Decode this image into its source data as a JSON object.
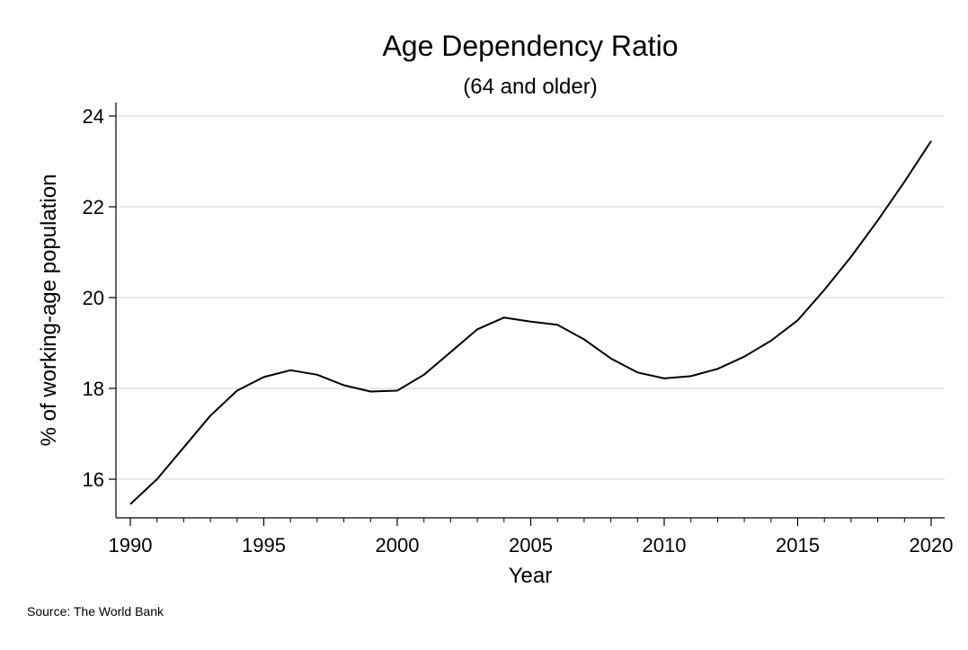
{
  "chart_data": {
    "type": "line",
    "title": "Age Dependency Ratio",
    "subtitle": "(64 and older)",
    "xlabel": "Year",
    "ylabel": "% of working-age population",
    "xlim": [
      1990,
      2020
    ],
    "ylim": [
      15.2,
      24.3
    ],
    "x_ticks": [
      1990,
      1995,
      2000,
      2005,
      2010,
      2015,
      2020
    ],
    "x_minor_ticks": [
      1991,
      1992,
      1993,
      1994,
      1996,
      1997,
      1998,
      1999,
      2001,
      2002,
      2003,
      2004,
      2006,
      2007,
      2008,
      2009,
      2011,
      2012,
      2013,
      2014,
      2016,
      2017,
      2018,
      2019
    ],
    "y_ticks": [
      16,
      18,
      20,
      22,
      24
    ],
    "grid": "horizontal",
    "line_color": "#000000",
    "grid_color": "#d0d0d0",
    "source": "Source: The World Bank",
    "series": [
      {
        "x": [
          1990,
          1991,
          1992,
          1993,
          1994,
          1995,
          1996,
          1997,
          1998,
          1999,
          2000,
          2001,
          2002,
          2003,
          2004,
          2005,
          2006,
          2007,
          2008,
          2009,
          2010,
          2011,
          2012,
          2013,
          2014,
          2015,
          2016,
          2017,
          2018,
          2019,
          2020
        ],
        "values": [
          15.45,
          16.0,
          16.7,
          17.4,
          17.95,
          18.25,
          18.4,
          18.3,
          18.07,
          17.93,
          17.95,
          18.3,
          18.8,
          19.3,
          19.56,
          19.47,
          19.4,
          19.08,
          18.66,
          18.35,
          18.22,
          18.27,
          18.43,
          18.7,
          19.05,
          19.5,
          20.17,
          20.9,
          21.7,
          22.55,
          23.45
        ]
      }
    ]
  }
}
